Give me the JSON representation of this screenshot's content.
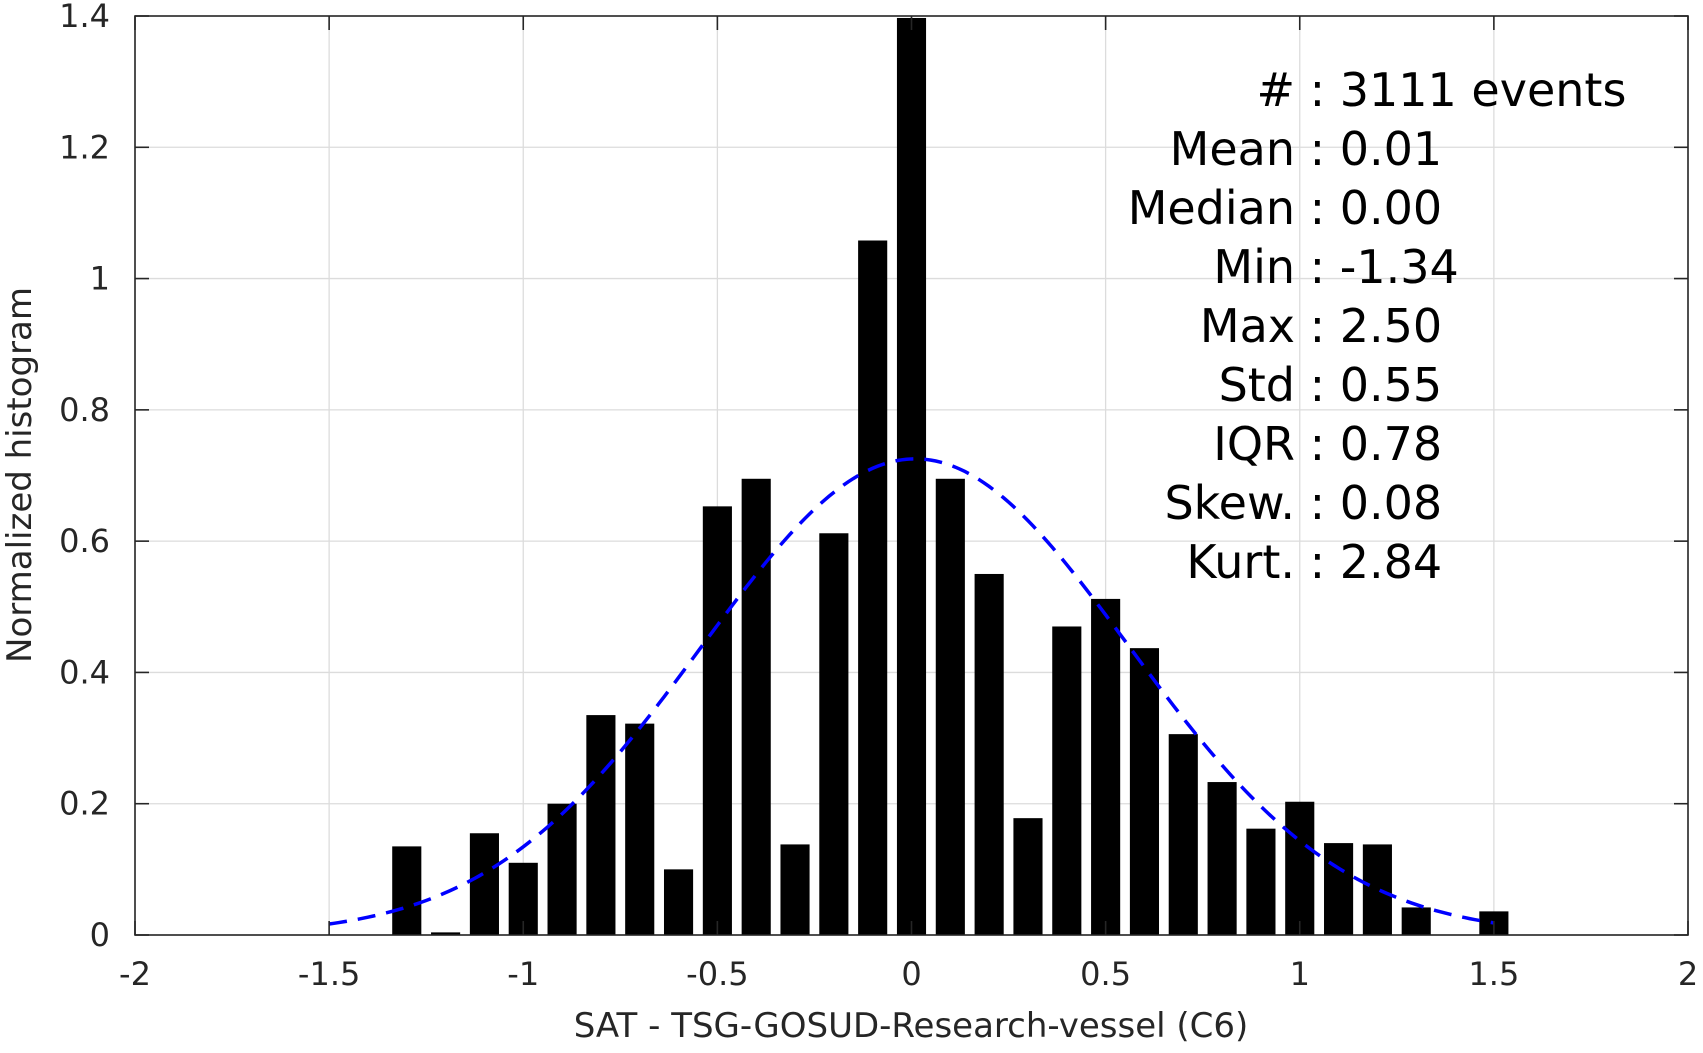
{
  "chart_data": {
    "type": "bar",
    "xlabel": "SAT - TSG-GOSUD-Research-vessel (C6)",
    "ylabel": "Normalized histogram",
    "xlim": [
      -2,
      2
    ],
    "ylim": [
      0,
      1.4
    ],
    "x_ticks": [
      -2,
      -1.5,
      -1,
      -0.5,
      0,
      0.5,
      1,
      1.5,
      2
    ],
    "x_tick_labels": [
      "-2",
      "-1.5",
      "-1",
      "-0.5",
      "0",
      "0.5",
      "1",
      "1.5",
      "2"
    ],
    "y_ticks": [
      0,
      0.2,
      0.4,
      0.6,
      0.8,
      1,
      1.2,
      1.4
    ],
    "y_tick_labels": [
      "0",
      "0.2",
      "0.4",
      "0.6",
      "0.8",
      "1",
      "1.2",
      "1.4"
    ],
    "grid": true,
    "bar_color": "#000000",
    "bar_width": 0.075,
    "bars": {
      "x": [
        -1.3,
        -1.2,
        -1.1,
        -1.0,
        -0.9,
        -0.8,
        -0.7,
        -0.6,
        -0.5,
        -0.4,
        -0.3,
        -0.2,
        -0.1,
        0.0,
        0.1,
        0.2,
        0.3,
        0.4,
        0.5,
        0.6,
        0.7,
        0.8,
        0.9,
        1.0,
        1.1,
        1.2,
        1.3,
        1.5
      ],
      "y": [
        0.135,
        0.004,
        0.155,
        0.11,
        0.2,
        0.335,
        0.322,
        0.1,
        0.653,
        0.695,
        0.138,
        0.612,
        1.058,
        1.397,
        0.695,
        0.55,
        0.178,
        0.47,
        0.512,
        0.437,
        0.306,
        0.233,
        0.162,
        0.203,
        0.14,
        0.138,
        0.042,
        0.036
      ]
    },
    "fit": {
      "type": "normal",
      "style": "dashed",
      "color": "#0000ff",
      "mean": 0.01,
      "std": 0.55,
      "x_range": [
        -1.5,
        1.5
      ]
    },
    "stats": [
      {
        "key": "#",
        "sep": " : ",
        "value": "3111 events"
      },
      {
        "key": "Mean",
        "sep": " : ",
        "value": "0.01"
      },
      {
        "key": "Median",
        "sep": " : ",
        "value": "0.00"
      },
      {
        "key": "Min",
        "sep": " : ",
        "value": "-1.34"
      },
      {
        "key": "Max",
        "sep": " : ",
        "value": "2.50"
      },
      {
        "key": "Std",
        "sep": " : ",
        "value": "0.55"
      },
      {
        "key": "IQR",
        "sep": " : ",
        "value": "0.78"
      },
      {
        "key": "Skew.",
        "sep": " : ",
        "value": "0.08"
      },
      {
        "key": "Kurt.",
        "sep": " : ",
        "value": "2.84"
      }
    ]
  }
}
